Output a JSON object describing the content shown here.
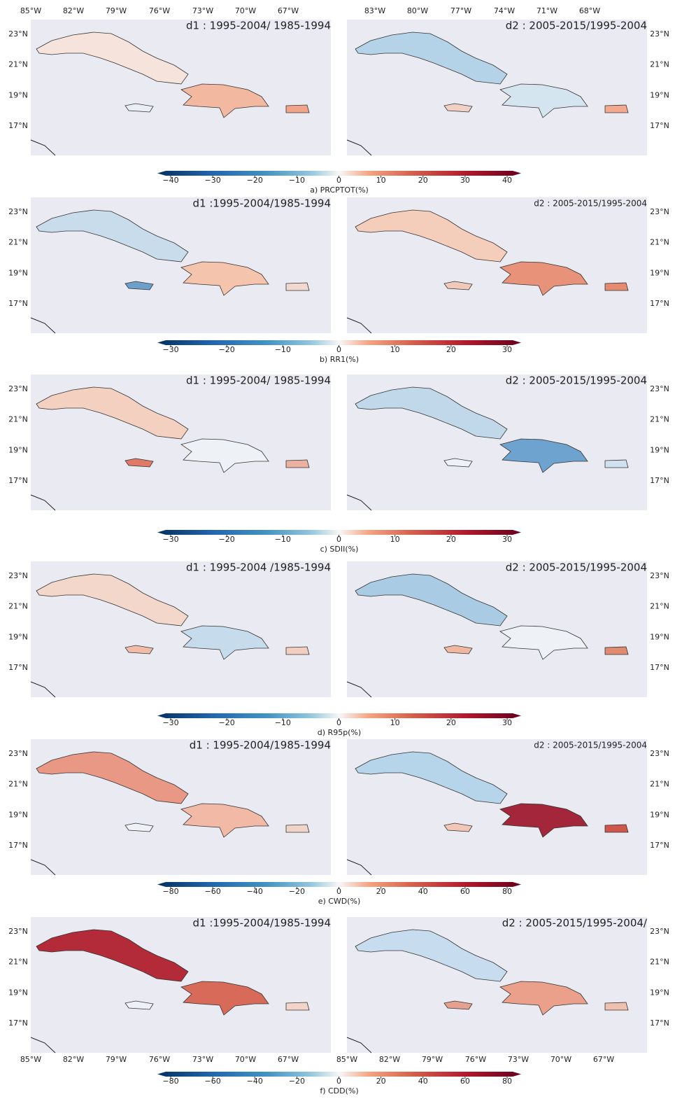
{
  "top_lon_labels_left": [
    "85°W",
    "82°W",
    "79°W",
    "76°W",
    "73°W",
    "70°W",
    "67°W"
  ],
  "top_lon_labels_right": [
    "83°W",
    "80°W",
    "77°W",
    "74°W",
    "71°W",
    "68°W"
  ],
  "bottom_lon_labels_left": [
    "85°W",
    "82°W",
    "79°W",
    "76°W",
    "73°W",
    "70°W",
    "67°W"
  ],
  "bottom_lon_labels_right": [
    "85°W",
    "82°W",
    "79°W",
    "76°W",
    "73°W",
    "70°W",
    "67°W"
  ],
  "lat_labels": [
    "23°N",
    "21°N",
    "19°N",
    "17°N"
  ],
  "rows": [
    {
      "left_title": "d1 : 1995-2004/ 1985-1994",
      "right_title": "d2 : 2005-2015/1995-2004",
      "colorbar": {
        "label": "a) PRCPTOT(%)",
        "range": [
          -40,
          40
        ],
        "ticks": [
          {
            "value": -40,
            "label": "−40"
          },
          {
            "value": -30,
            "label": "−30"
          },
          {
            "value": -20,
            "label": "−20"
          },
          {
            "value": -10,
            "label": "−10"
          },
          0,
          10,
          20,
          30,
          40
        ]
      }
    },
    {
      "left_title": "d1 :1995-2004/1985-1994",
      "right_title": "d2 : 2005-2015/1995-2004",
      "colorbar": {
        "label": "b) RR1(%)",
        "range": [
          -30,
          30
        ],
        "ticks": [
          {
            "value": -30,
            "label": "−30"
          },
          {
            "value": -20,
            "label": "−20"
          },
          {
            "value": -10,
            "label": "−10"
          },
          0,
          10,
          20,
          30
        ]
      }
    },
    {
      "left_title": "d1 : 1995-2004/ 1985-1994",
      "right_title": "d2 : 2005-2015/1995-2004",
      "colorbar": {
        "label": "c) SDII(%)",
        "range": [
          -30,
          30
        ],
        "ticks": [
          {
            "value": -30,
            "label": "−30"
          },
          {
            "value": -20,
            "label": "−20"
          },
          {
            "value": -10,
            "label": "−10"
          },
          0,
          10,
          20,
          30
        ]
      }
    },
    {
      "left_title": "d1 : 1995-2004 /1985-1994",
      "right_title": "d2 : 2005-2015/1995-2004",
      "colorbar": {
        "label": "d) R95p(%)",
        "range": [
          -30,
          30
        ],
        "ticks": [
          {
            "value": -30,
            "label": "−30"
          },
          {
            "value": -20,
            "label": "−20"
          },
          {
            "value": -10,
            "label": "−10"
          },
          0,
          10,
          20,
          30
        ]
      }
    },
    {
      "left_title": "d1 : 1995-2004/1985-1994",
      "right_title": "d2 : 2005-2015/1995-2004",
      "colorbar": {
        "label": "e) CWD(%)",
        "range": [
          -80,
          80
        ],
        "ticks": [
          {
            "value": -80,
            "label": "−80"
          },
          {
            "value": -60,
            "label": "−60"
          },
          {
            "value": -40,
            "label": "−40"
          },
          {
            "value": -20,
            "label": "−20"
          },
          0,
          20,
          40,
          60,
          80
        ]
      }
    },
    {
      "left_title": "d1 :1995-2004/1985-1994",
      "right_title": "d2 : 2005-2015/1995-2004/",
      "colorbar": {
        "label": "f) CDD(%)",
        "range": [
          -80,
          80
        ],
        "ticks": [
          {
            "value": -80,
            "label": "−80"
          },
          {
            "value": -60,
            "label": "−60"
          },
          {
            "value": -40,
            "label": "−40"
          },
          {
            "value": -20,
            "label": "−20"
          },
          0,
          20,
          40,
          60,
          80
        ]
      }
    }
  ]
}
